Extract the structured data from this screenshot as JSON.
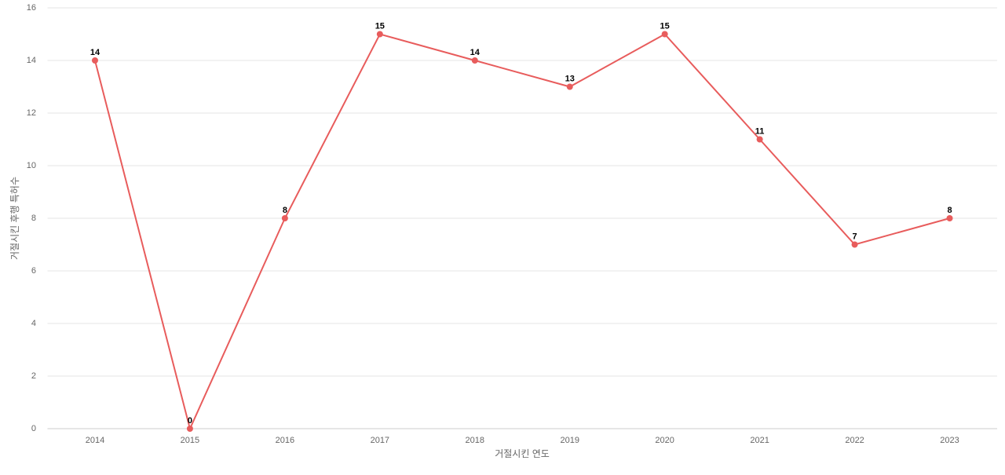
{
  "chart_data": {
    "type": "line",
    "x_label": "거절시킨 연도",
    "y_label": "거절시킨 후행 특허수",
    "categories": [
      "2014",
      "2015",
      "2016",
      "2017",
      "2018",
      "2019",
      "2020",
      "2021",
      "2022",
      "2023"
    ],
    "series": [
      {
        "name": "거절시킨 후행 특허수",
        "color": "#e85c5c",
        "values": [
          14,
          0,
          8,
          15,
          14,
          13,
          15,
          11,
          7,
          8
        ]
      }
    ],
    "ylim": [
      0,
      16
    ],
    "yticks": [
      0,
      2,
      4,
      6,
      8,
      10,
      12,
      14,
      16
    ],
    "grid": true,
    "data_labels": true
  }
}
